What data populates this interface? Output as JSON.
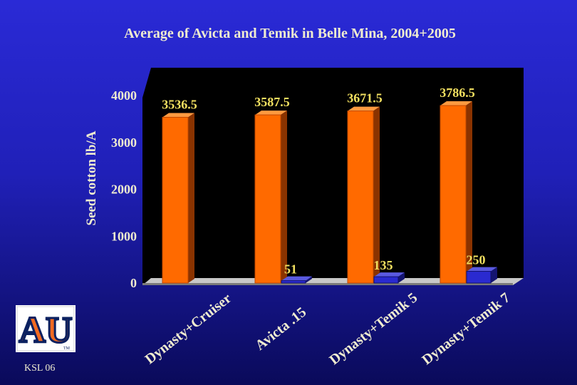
{
  "chart_data": {
    "type": "bar",
    "title": "Average of Avicta and Temik in Belle Mina, 2004+2005",
    "xlabel": "",
    "ylabel": "Seed cotton lb/A",
    "ylim": [
      0,
      4000
    ],
    "yticks": [
      0,
      1000,
      2000,
      3000,
      4000
    ],
    "categories": [
      "Dynasty+Cruiser",
      "Avicta .15",
      "Dynasty+Temik 5",
      "Dynasty+Temik 7"
    ],
    "series": [
      {
        "name": "Seed cotton yield",
        "color": "#ff6a00",
        "values": [
          3536.5,
          3587.5,
          3671.5,
          3786.5
        ]
      },
      {
        "name": "Difference",
        "color": "#2a2ad0",
        "values": [
          null,
          51,
          135,
          250
        ]
      }
    ],
    "data_labels": [
      [
        "3536.5",
        "3587.5",
        "3671.5",
        "3786.5"
      ],
      [
        "",
        "51",
        "135",
        "250"
      ]
    ],
    "grid": false,
    "legend": "none"
  },
  "footer": {
    "label": "KSL 06"
  },
  "logo": {
    "letters": "AU",
    "mark": "TM"
  }
}
